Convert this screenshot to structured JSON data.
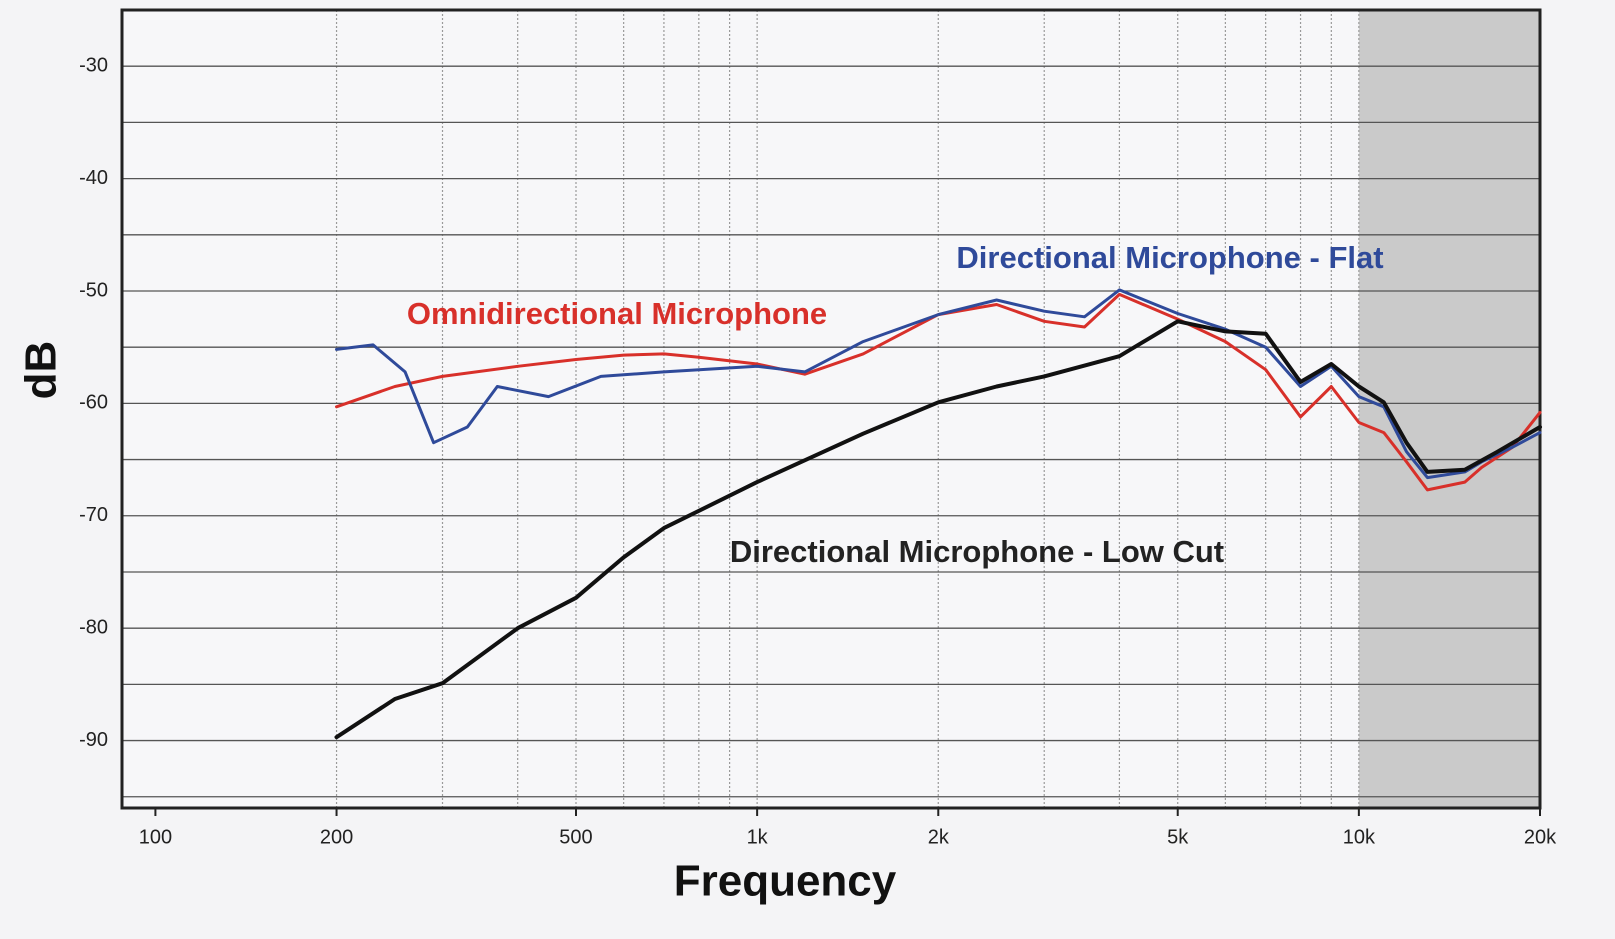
{
  "chart_data": {
    "type": "line",
    "xlabel": "Frequency",
    "ylabel": "dB",
    "xscale": "log",
    "xlim": [
      88,
      20000
    ],
    "ylim": [
      -96,
      -25
    ],
    "xticks": [
      100,
      200,
      500,
      {
        "value": 1000,
        "label": "1k"
      },
      {
        "value": 2000,
        "label": "2k"
      },
      {
        "value": 5000,
        "label": "5k"
      },
      {
        "value": 10000,
        "label": "10k"
      },
      {
        "value": 20000,
        "label": "20k"
      }
    ],
    "yticks": [
      -30,
      -40,
      -50,
      -60,
      -70,
      -80,
      -90
    ],
    "grid": true,
    "x_grid": [
      200,
      300,
      400,
      500,
      600,
      700,
      800,
      900,
      1000,
      2000,
      3000,
      4000,
      5000,
      6000,
      7000,
      8000,
      9000,
      10000
    ],
    "y_grid": [
      -30,
      -35,
      -40,
      -45,
      -50,
      -55,
      -60,
      -65,
      -70,
      -75,
      -80,
      -85,
      -90,
      -95
    ],
    "shaded_region": [
      10000,
      20000
    ],
    "series": [
      {
        "name": "Omnidirectional Microphone",
        "color": "#d8302a",
        "x": [
          200,
          250,
          300,
          400,
          500,
          600,
          700,
          800,
          1000,
          1200,
          1500,
          2000,
          2500,
          3000,
          3500,
          4000,
          5000,
          6000,
          7000,
          8000,
          9000,
          10000,
          11000,
          12000,
          13000,
          15000,
          16000,
          18000,
          20000
        ],
        "values": [
          -60.3,
          -58.5,
          -57.6,
          -56.7,
          -56.1,
          -55.7,
          -55.6,
          -55.9,
          -56.5,
          -57.4,
          -55.6,
          -52.1,
          -51.2,
          -52.7,
          -53.2,
          -50.3,
          -52.5,
          -54.5,
          -57.0,
          -61.2,
          -58.5,
          -61.7,
          -62.6,
          -65.2,
          -67.7,
          -67.0,
          -65.7,
          -63.9,
          -60.8
        ]
      },
      {
        "name": "Directional Microphone - Flat",
        "color": "#2f4a9a",
        "x": [
          200,
          230,
          260,
          290,
          330,
          370,
          450,
          550,
          700,
          1000,
          1200,
          1500,
          2000,
          2500,
          3000,
          3500,
          4000,
          5000,
          6000,
          7000,
          8000,
          9000,
          10000,
          11000,
          12000,
          13000,
          15000,
          16000,
          18000,
          20000
        ],
        "values": [
          -55.2,
          -54.8,
          -57.2,
          -63.5,
          -62.1,
          -58.5,
          -59.4,
          -57.6,
          -57.2,
          -56.7,
          -57.2,
          -54.5,
          -52.1,
          -50.8,
          -51.8,
          -52.3,
          -49.9,
          -52.0,
          -53.4,
          -55.0,
          -58.5,
          -56.7,
          -59.4,
          -60.3,
          -64.3,
          -66.6,
          -66.1,
          -65.2,
          -63.9,
          -62.6
        ]
      },
      {
        "name": "Directional Microphone - Low Cut",
        "color": "#111111",
        "x": [
          200,
          250,
          300,
          400,
          500,
          600,
          700,
          1000,
          1500,
          2000,
          2500,
          3000,
          4000,
          5000,
          6000,
          7000,
          8000,
          9000,
          10000,
          11000,
          12000,
          13000,
          15000,
          17000,
          20000
        ],
        "values": [
          -89.7,
          -86.3,
          -84.9,
          -80.0,
          -77.3,
          -73.7,
          -71.1,
          -67.0,
          -62.7,
          -59.9,
          -58.5,
          -57.6,
          -55.8,
          -52.7,
          -53.6,
          -53.8,
          -58.1,
          -56.5,
          -58.5,
          -59.9,
          -63.5,
          -66.1,
          -65.9,
          -64.3,
          -62.1
        ]
      }
    ]
  }
}
